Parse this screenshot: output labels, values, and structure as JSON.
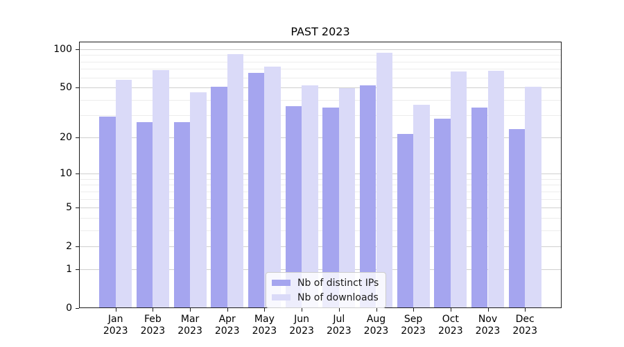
{
  "title": "PAST 2023",
  "legend": {
    "items": [
      {
        "label": "Nb of distinct IPs",
        "color": "#a5a5ef"
      },
      {
        "label": "Nb of downloads",
        "color": "#dadaf8"
      }
    ]
  },
  "axes": {
    "y_tick_labels": [
      "100",
      "50",
      "20",
      "10",
      "5",
      "2",
      "1",
      "0"
    ],
    "y_tick_values": [
      100,
      50,
      20,
      10,
      5,
      2,
      1,
      0
    ],
    "y_minor_values": [
      3,
      4,
      6,
      7,
      8,
      9,
      30,
      40,
      60,
      70,
      80,
      90
    ],
    "x_year": "2023"
  },
  "colors": {
    "series_ips": "#a5a5ef",
    "series_downloads": "#dadaf8",
    "grid_major": "#cfcfcf",
    "grid_minor": "#ececec",
    "spine": "#1a1a1a",
    "background": "#ffffff"
  },
  "chart_data": {
    "type": "bar",
    "title": "PAST 2023",
    "xlabel": "",
    "ylabel": "",
    "scale": "log1p",
    "grid": "on",
    "legend_position": "lower center",
    "categories": [
      "Jan 2023",
      "Feb 2023",
      "Mar 2023",
      "Apr 2023",
      "May 2023",
      "Jun 2023",
      "Jul 2023",
      "Aug 2023",
      "Sep 2023",
      "Oct 2023",
      "Nov 2023",
      "Dec 2023"
    ],
    "series": [
      {
        "name": "Nb of distinct IPs",
        "color": "#a5a5ef",
        "values": [
          29,
          26,
          26,
          50,
          64,
          35,
          34,
          51,
          21,
          28,
          34,
          23
        ]
      },
      {
        "name": "Nb of downloads",
        "color": "#dadaf8",
        "values": [
          57,
          68,
          45,
          90,
          72,
          51,
          49,
          92,
          36,
          66,
          67,
          50
        ]
      }
    ],
    "y_ticks": [
      0,
      1,
      2,
      5,
      10,
      20,
      50,
      100
    ],
    "ylim": [
      0,
      114
    ]
  }
}
